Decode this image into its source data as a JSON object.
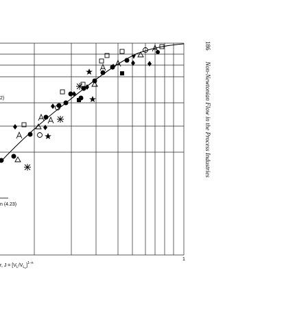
{
  "page": {
    "number": "186",
    "running_title": "Non-Newtonian Flow in the Process Industries"
  },
  "figure": {
    "legend_fragment": "2)",
    "equation_label": "n (4.23)",
    "x_tick": "1",
    "x_axis_label": {
      "prefix": "r, J = [V",
      "sub1": "L",
      "middle": "/V",
      "sub2": "L",
      "sub3": "c",
      "close": "]",
      "power": "1−n"
    }
  }
}
